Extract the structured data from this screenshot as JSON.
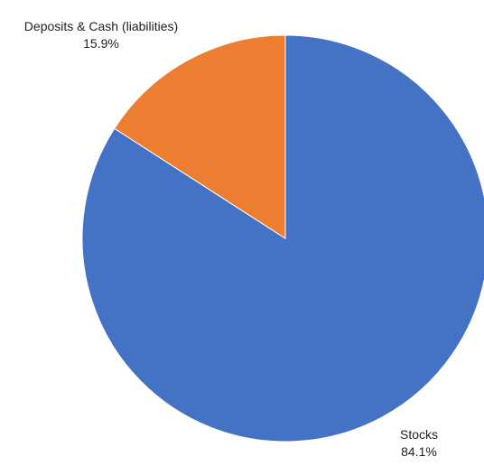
{
  "chart_data": {
    "type": "pie",
    "title": "",
    "slices": [
      {
        "label": "Stocks",
        "value": 84.1,
        "value_label": "84.1%",
        "color": "#4472C4"
      },
      {
        "label": "Deposits & Cash (liabilities)",
        "value": 15.9,
        "value_label": "15.9%",
        "color": "#ED7D31"
      }
    ],
    "start_angle": "12 o'clock",
    "direction": "clockwise",
    "legend": "none",
    "data_labels": "outside"
  }
}
